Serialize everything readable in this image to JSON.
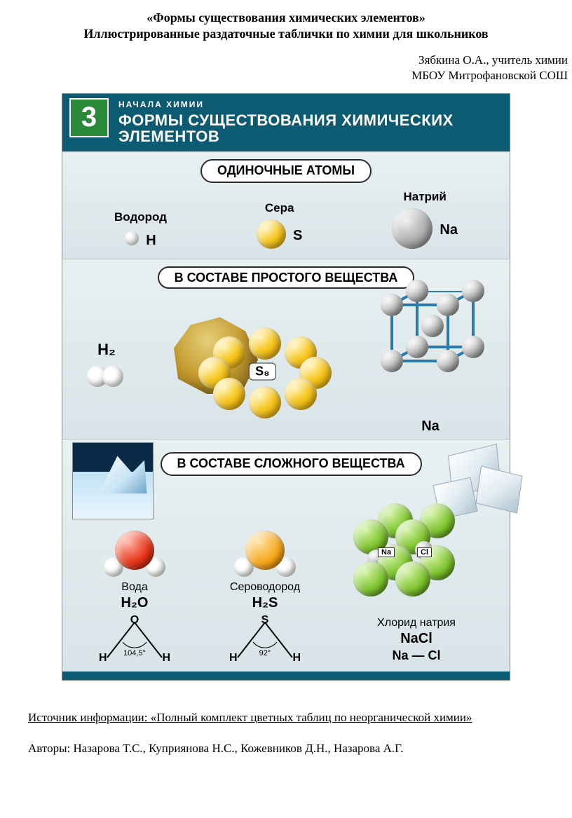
{
  "doc": {
    "title": "«Формы существования химических элементов»",
    "subtitle": "Иллюстрированные раздаточные таблички по химии для школьников",
    "author1": "Зябкина О.А., учитель химии",
    "author2": "МБОУ Митрофановской СОШ",
    "source_label": "Источник информации: «Полный комплект цветных таблиц по неорганической химии»",
    "authors_label": "Авторы: Назарова Т.С., Куприянова Н.С., Кожевников Д.Н., Назарова А.Г."
  },
  "poster": {
    "number": "3",
    "rubric": "НАЧАЛА ХИМИИ",
    "title": "ФОРМЫ СУЩЕСТВОВАНИЯ ХИМИЧЕСКИХ ЭЛЕМЕНТОВ",
    "colors": {
      "header_bg": "#0d5a73",
      "number_bg": "#2a8a3a",
      "section_bg_top": "#e8f0f2",
      "section_bg_bot": "#d8e4e8"
    },
    "section1": {
      "heading": "ОДИНОЧНЫЕ АТОМЫ",
      "atoms": [
        {
          "name": "Водород",
          "symbol": "H",
          "color": "white",
          "size": 20
        },
        {
          "name": "Сера",
          "symbol": "S",
          "color": "yellow",
          "size": 42
        },
        {
          "name": "Натрий",
          "symbol": "Na",
          "color": "grey",
          "size": 58
        }
      ]
    },
    "section2": {
      "heading": "В СОСТАВЕ ПРОСТОГО ВЕЩЕСТВА",
      "h2_label": "H₂",
      "s8_label": "S₈",
      "na_label": "Na",
      "s8_sphere_size": 46,
      "s8_color": "yellow",
      "lattice_sphere_size": 32,
      "lattice_color": "grey",
      "lattice_edge_color": "#2a7ab0"
    },
    "section3": {
      "heading": "В СОСТАВЕ СЛОЖНОГО ВЕЩЕСТВА",
      "mols": [
        {
          "name": "Вода",
          "formula": "H₂O",
          "top": "O",
          "angle": "104,5°",
          "center_color": "red",
          "side_color": "white"
        },
        {
          "name": "Сероводород",
          "formula": "H₂S",
          "top": "S",
          "angle": "92°",
          "center_color": "orange",
          "side_color": "white"
        }
      ],
      "nacl": {
        "name": "Хлорид натрия",
        "formula": "NaCl",
        "bond": "Na — Cl",
        "na_tag": "Na",
        "cl_tag": "Cl",
        "na_color": "grey",
        "cl_color": "green",
        "cl_size": 50,
        "na_size": 26
      }
    }
  }
}
